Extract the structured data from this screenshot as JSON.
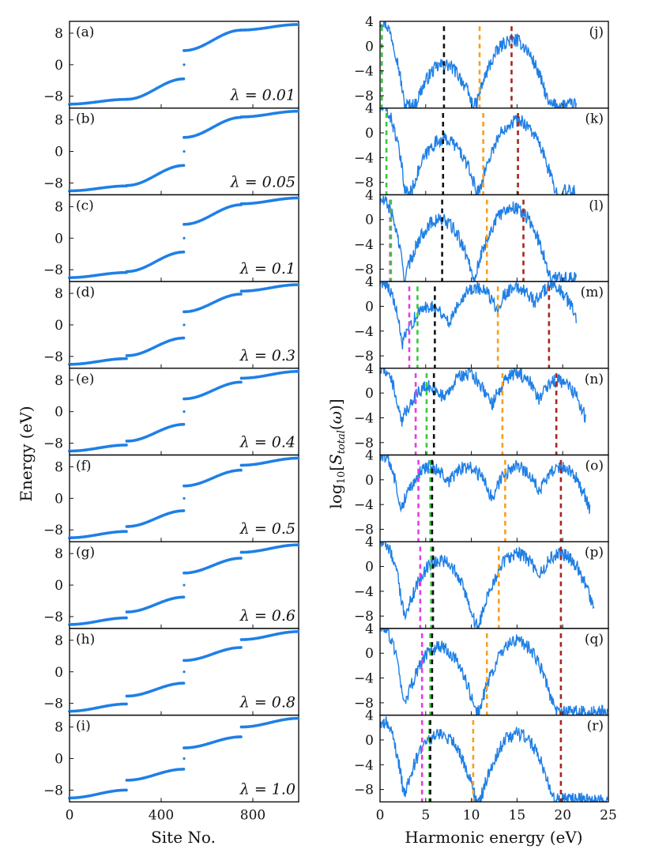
{
  "figure": {
    "left_ylabel": "Energy (eV)",
    "left_xlabel": "Site No.",
    "right_ylabel": "log10[S_total(ω)]",
    "right_xlabel": "Harmonic energy (eV)"
  },
  "colors": {
    "data": "#1f7fe6",
    "magenta": "#e83be3",
    "green": "#37c93a",
    "black": "#111111",
    "orange": "#f5a01c",
    "darkred": "#a6261e",
    "frame": "#111111"
  },
  "chart_data": [
    {
      "type": "scatter",
      "side": "left",
      "xlabel": "Site No.",
      "ylabel": "Energy (eV)",
      "xlim": [
        0,
        1000
      ],
      "ylim": [
        -11,
        11
      ],
      "xticks": [
        "0",
        "400",
        "800"
      ],
      "yticks": [
        "8",
        "0",
        "−8"
      ],
      "panels": [
        {
          "label": "(a)",
          "lambda": "λ = 0.01",
          "bands": [
            [
              -10,
              -9,
              -4.2
            ],
            [
              4,
              8,
              10.3
            ]
          ],
          "split_at": [],
          "step": 0.01
        },
        {
          "label": "(b)",
          "lambda": "λ = 0.05",
          "bands": [
            [
              -10,
              -8,
              -4.0
            ],
            [
              4,
              8,
              10.0
            ]
          ],
          "split_at": [
            250,
            750
          ],
          "step": 0.05
        },
        {
          "label": "(c)",
          "lambda": "λ = 0.1",
          "bands": [
            [
              -10,
              -8,
              -3.0
            ],
            [
              4,
              8,
              10.0
            ]
          ],
          "split_at": [
            250,
            750
          ],
          "step": 0.1
        },
        {
          "label": "(d)",
          "lambda": "λ = 0.3",
          "bands": [
            [
              -10,
              -9,
              -3.0
            ],
            [
              4,
              7,
              10.0
            ]
          ],
          "split_at": [
            250,
            750
          ],
          "step": 0.3
        },
        {
          "label": "(e)",
          "lambda": "λ = 0.4",
          "bands": [
            [
              -10,
              -10,
              -3.0
            ],
            [
              4,
              6,
              10.0
            ]
          ],
          "split_at": [
            250,
            750
          ],
          "step": 0.4
        },
        {
          "label": "(f)",
          "lambda": "λ = 0.5",
          "bands": [
            [
              -10,
              -10,
              -3.0
            ],
            [
              4,
              5,
              10.0
            ]
          ],
          "split_at": [
            250,
            750
          ],
          "step": 0.5
        },
        {
          "label": "(g)",
          "lambda": "λ = 0.6",
          "bands": [
            [
              -10,
              -9,
              -3.0
            ],
            [
              3,
              5,
              10.0
            ]
          ],
          "split_at": [
            250,
            750
          ],
          "step": 0.6
        },
        {
          "label": "(h)",
          "lambda": "λ = 0.8",
          "bands": [
            [
              -10,
              -9,
              -2.0
            ],
            [
              2,
              5,
              11.0
            ]
          ],
          "split_at": [
            250,
            750
          ],
          "step": 0.8
        },
        {
          "label": "(i)",
          "lambda": "λ = 1.0",
          "bands": [
            [
              -10,
              -9,
              -0.5
            ],
            [
              0.5,
              5,
              11.0
            ]
          ],
          "split_at": [
            250,
            750
          ],
          "step": 1.0
        }
      ]
    },
    {
      "type": "line",
      "side": "right",
      "xlabel": "Harmonic energy (eV)",
      "ylabel": "log10[S_total(ω)]",
      "xlim": [
        0,
        25
      ],
      "ylim": [
        -10,
        4
      ],
      "xticks": [
        "0",
        "5",
        "10",
        "15",
        "20",
        "25"
      ],
      "yticks": [
        "4",
        "0",
        "−4",
        "−8"
      ],
      "panels": [
        {
          "label": "(j)",
          "vlines": {
            "magenta": null,
            "green": 0.2,
            "black": 7.0,
            "orange": 10.9,
            "darkred": 14.4
          },
          "peaks": [
            [
              0.2,
              4
            ],
            [
              7.0,
              -3
            ],
            [
              14.5,
              1
            ]
          ],
          "cutoff": 21.5
        },
        {
          "label": "(k)",
          "vlines": {
            "magenta": null,
            "green": 0.7,
            "black": 6.9,
            "orange": 11.3,
            "darkred": 15.1
          },
          "peaks": [
            [
              0.3,
              4
            ],
            [
              7.0,
              -1
            ],
            [
              15.0,
              2
            ]
          ],
          "cutoff": 21.5
        },
        {
          "label": "(l)",
          "vlines": {
            "magenta": 1.1,
            "green": 1.2,
            "black": 6.8,
            "orange": 11.7,
            "darkred": 15.7
          },
          "peaks": [
            [
              0.3,
              3
            ],
            [
              6.5,
              0
            ],
            [
              14.5,
              2
            ]
          ],
          "cutoff": 21.5
        },
        {
          "label": "(m)",
          "vlines": {
            "magenta": 3.2,
            "green": 4.1,
            "black": 6.0,
            "orange": 12.9,
            "darkred": 18.5
          },
          "peaks": [
            [
              0.3,
              4
            ],
            [
              5.5,
              0
            ],
            [
              10.5,
              3
            ],
            [
              15.0,
              3
            ],
            [
              18.8,
              3
            ]
          ],
          "cutoff": 21.5
        },
        {
          "label": "(n)",
          "vlines": {
            "magenta": 3.9,
            "green": 5.1,
            "black": 5.9,
            "orange": 13.4,
            "darkred": 19.3
          },
          "peaks": [
            [
              0.3,
              4
            ],
            [
              5.3,
              1
            ],
            [
              9.5,
              3
            ],
            [
              15.0,
              3
            ],
            [
              19.5,
              2
            ]
          ],
          "cutoff": 22.5
        },
        {
          "label": "(o)",
          "vlines": {
            "magenta": 4.2,
            "green": 5.5,
            "black": 5.7,
            "orange": 13.7,
            "darkred": 19.8
          },
          "peaks": [
            [
              0.3,
              4
            ],
            [
              5.5,
              2
            ],
            [
              9.5,
              2
            ],
            [
              15.0,
              2
            ],
            [
              19.8,
              2
            ]
          ],
          "cutoff": 23.0
        },
        {
          "label": "(p)",
          "vlines": {
            "magenta": 4.4,
            "green": 5.6,
            "black": 5.8,
            "orange": 13.0,
            "darkred": 19.8
          },
          "peaks": [
            [
              0.3,
              4
            ],
            [
              6.5,
              1
            ],
            [
              15.0,
              2
            ],
            [
              19.8,
              2
            ]
          ],
          "cutoff": 23.5
        },
        {
          "label": "(q)",
          "vlines": {
            "magenta": 4.6,
            "green": 5.5,
            "black": 5.7,
            "orange": 11.7,
            "darkred": 19.8
          },
          "peaks": [
            [
              0.3,
              4
            ],
            [
              6.5,
              1
            ],
            [
              15.0,
              2
            ]
          ],
          "cutoff": 25.0
        },
        {
          "label": "(r)",
          "vlines": {
            "magenta": 4.6,
            "green": 5.4,
            "black": 5.5,
            "orange": 10.2,
            "darkred": 19.8
          },
          "peaks": [
            [
              0.3,
              3
            ],
            [
              6.5,
              1
            ],
            [
              15.0,
              1
            ]
          ],
          "cutoff": 25.0
        }
      ]
    }
  ]
}
